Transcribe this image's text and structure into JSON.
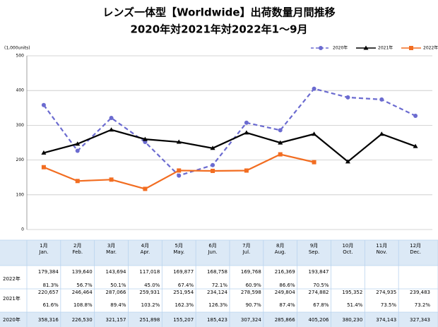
{
  "chart_data": {
    "type": "line",
    "title": "レンズ一体型【Worldwide】出荷数量月間推移",
    "subtitle": "2020年対2021年対2022年1～9月",
    "y_unit_label": "(1,000units)",
    "categories": [
      "1月",
      "2月",
      "3月",
      "4月",
      "5月",
      "6月",
      "7月",
      "8月",
      "9月",
      "10月",
      "11月",
      "12月"
    ],
    "categories_en": [
      "Jan.",
      "Feb.",
      "Mar.",
      "Apr.",
      "May.",
      "Jun.",
      "Jul.",
      "Aug.",
      "Sep.",
      "Oct.",
      "Nov.",
      "Dec."
    ],
    "ylim": [
      0,
      500000
    ],
    "yticks": [
      0,
      {
        "value": 100000,
        "label": "100"
      },
      {
        "value": 200000,
        "label": "200"
      },
      {
        "value": 300000,
        "label": "300"
      },
      {
        "value": 400000,
        "label": "400"
      },
      {
        "value": 500000,
        "label": "500"
      }
    ],
    "grid": true,
    "legend": "top-right",
    "series": [
      {
        "name": "2020年",
        "color": "#6b6bd0",
        "dashed": true,
        "marker": "circle",
        "values": [
          358316,
          226530,
          321157,
          251898,
          155207,
          185423,
          307324,
          285866,
          405206,
          380230,
          374143,
          327343
        ],
        "value_labels": [
          "358,316",
          "226,530",
          "321,157",
          "251,898",
          "155,207",
          "185,423",
          "307,324",
          "285,866",
          "405,206",
          "380,230",
          "374,143",
          "327,343"
        ]
      },
      {
        "name": "2021年",
        "color": "#000000",
        "dashed": false,
        "marker": "triangle",
        "values": [
          220657,
          246464,
          287066,
          259931,
          251954,
          234124,
          278598,
          249804,
          274882,
          195352,
          274935,
          239483
        ],
        "value_labels": [
          "220,657",
          "246,464",
          "287,066",
          "259,931",
          "251,954",
          "234,124",
          "278,598",
          "249,804",
          "274,882",
          "195,352",
          "274,935",
          "239,483"
        ],
        "ratio_labels": [
          "61.6%",
          "108.8%",
          "89.4%",
          "103.2%",
          "162.3%",
          "126.3%",
          "90.7%",
          "87.4%",
          "67.8%",
          "51.4%",
          "73.5%",
          "73.2%"
        ]
      },
      {
        "name": "2022年",
        "color": "#f26d21",
        "dashed": false,
        "marker": "square",
        "values": [
          179384,
          139640,
          143694,
          117018,
          169877,
          168758,
          169768,
          216369,
          193847,
          null,
          null,
          null
        ],
        "value_labels": [
          "179,384",
          "139,640",
          "143,694",
          "117,018",
          "169,877",
          "168,758",
          "169,768",
          "216,369",
          "193,847",
          null,
          null,
          null
        ],
        "ratio_labels": [
          "81.3%",
          "56.7%",
          "50.1%",
          "45.0%",
          "67.4%",
          "72.1%",
          "60.9%",
          "86.6%",
          "70.5%",
          null,
          null,
          null
        ]
      }
    ]
  }
}
